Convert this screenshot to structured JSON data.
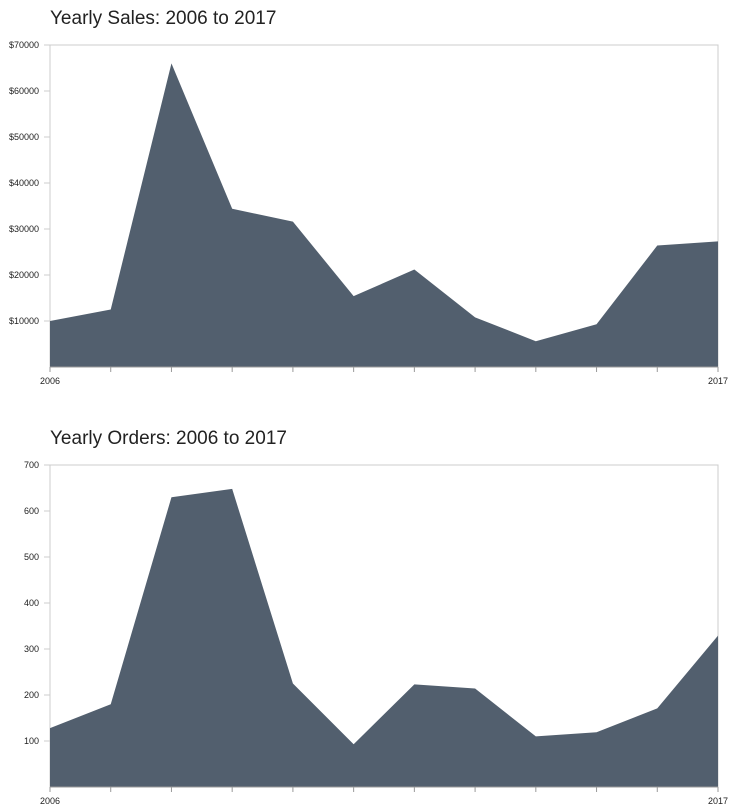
{
  "chart_data": [
    {
      "type": "area",
      "title": "Yearly Sales: 2006 to 2017",
      "x": [
        2006,
        2007,
        2008,
        2009,
        2010,
        2011,
        2012,
        2013,
        2014,
        2015,
        2016,
        2017
      ],
      "values": [
        10000,
        12500,
        66000,
        34400,
        31600,
        15400,
        21200,
        10800,
        5600,
        9300,
        26400,
        27300
      ],
      "color": "#525f6e",
      "xlim": [
        2006,
        2017
      ],
      "xticks": [
        2006,
        2017
      ],
      "ylim": [
        0,
        70000
      ],
      "yticks": [
        {
          "value": 10000,
          "label": "$10000"
        },
        {
          "value": 20000,
          "label": "$20000"
        },
        {
          "value": 30000,
          "label": "$30000"
        },
        {
          "value": 40000,
          "label": "$40000"
        },
        {
          "value": 50000,
          "label": "$50000"
        },
        {
          "value": 60000,
          "label": "$60000"
        },
        {
          "value": 70000,
          "label": "$70000"
        }
      ]
    },
    {
      "type": "area",
      "title": "Yearly Orders: 2006 to 2017",
      "x": [
        2006,
        2007,
        2008,
        2009,
        2010,
        2011,
        2012,
        2013,
        2014,
        2015,
        2016,
        2017
      ],
      "values": [
        128,
        180,
        630,
        648,
        225,
        93,
        223,
        214,
        110,
        119,
        171,
        329
      ],
      "color": "#525f6e",
      "xlim": [
        2006,
        2017
      ],
      "xticks": [
        2006,
        2017
      ],
      "ylim": [
        0,
        700
      ],
      "yticks": [
        100,
        200,
        300,
        400,
        500,
        600,
        700
      ]
    }
  ]
}
